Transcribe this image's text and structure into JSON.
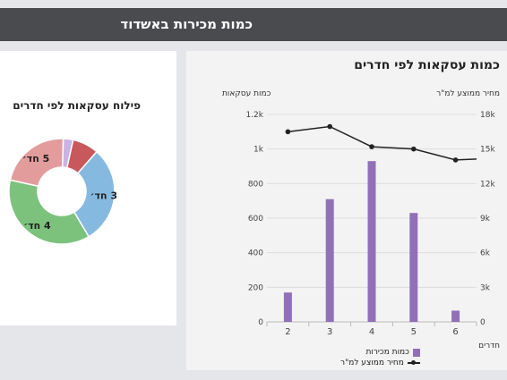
{
  "header": {
    "title": "כמות מכירות באשדוד"
  },
  "colors": {
    "header_bg": "#4a4b4f",
    "bar": "#9170b8",
    "line": "#222222",
    "donut": [
      "#a9c7e9",
      "#c85a5e",
      "#86bbe0",
      "#7fc17f",
      "#e59c9c",
      "#c9b0e0"
    ]
  },
  "donut": {
    "title": "פילוח עסקאות לפי חדרים",
    "slices": [
      {
        "label": "3 חד׳",
        "value": 30,
        "color": "#86b9e0"
      },
      {
        "label": "4 חד׳",
        "value": 37,
        "color": "#7cc27d"
      },
      {
        "label": "5 חד׳",
        "value": 22,
        "color": "#e39c9c"
      },
      {
        "label": "",
        "value": 3,
        "color": "#c9b3e4"
      },
      {
        "label": "",
        "value": 8,
        "color": "#c8585c"
      }
    ]
  },
  "combo": {
    "title": "כמות עסקאות לפי חדרים",
    "left_axis_title": "כמות עסקאות",
    "right_axis_title": "מחיר ממוצע למ\"ר",
    "x_axis_title": "חדרים",
    "legend": {
      "bar": "כמות מכירות",
      "line": "מחיר ממוצע למ\"ר"
    }
  },
  "chart_data": [
    {
      "type": "pie",
      "title": "פילוח עסקאות לפי חדרים",
      "categories": [
        "3 חד׳",
        "4 חד׳",
        "5 חד׳",
        "",
        ""
      ],
      "values": [
        30,
        37,
        22,
        3,
        8
      ]
    },
    {
      "type": "bar",
      "title": "כמות עסקאות לפי חדרים",
      "categories": [
        "2",
        "3",
        "4",
        "5",
        "6"
      ],
      "series": [
        {
          "name": "כמות מכירות",
          "type": "bar",
          "axis": "left",
          "values": [
            170,
            710,
            930,
            630,
            65
          ]
        },
        {
          "name": "מחיר ממוצע למ\"ר",
          "type": "line",
          "axis": "right",
          "values": [
            16500,
            16950,
            15200,
            15000,
            14050
          ]
        }
      ],
      "xlabel": "חדרים",
      "ylabel": "כמות עסקאות",
      "y2label": "מחיר ממוצע למ\"ר",
      "ylim": [
        0,
        1200
      ],
      "y2lim": [
        0,
        18000
      ],
      "yticks": [
        "0",
        "200",
        "400",
        "600",
        "800",
        "1k",
        "1.2k"
      ],
      "y2ticks": [
        "0",
        "3k",
        "6k",
        "9k",
        "12k",
        "15k",
        "18k"
      ],
      "grid": true,
      "legend": "bottom"
    }
  ]
}
